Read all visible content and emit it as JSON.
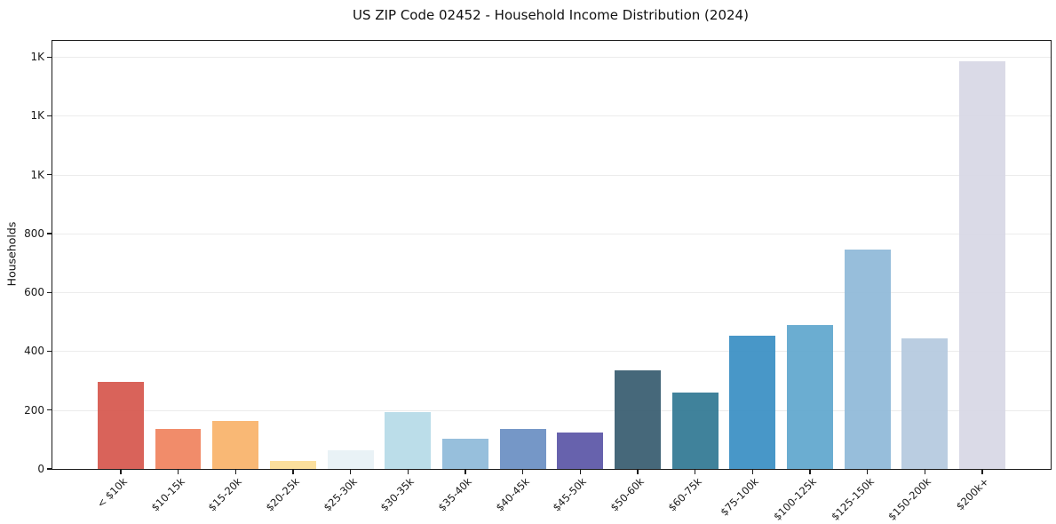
{
  "chart_data": {
    "type": "bar",
    "title": "US ZIP Code 02452 - Household Income Distribution (2024)",
    "xlabel": "",
    "ylabel": "Households",
    "categories": [
      "< $10k",
      "$10-15k",
      "$15-20k",
      "$20-25k",
      "$25-30k",
      "$30-35k",
      "$35-40k",
      "$40-45k",
      "$45-50k",
      "$50-60k",
      "$60-75k",
      "$75-100k",
      "$100-125k",
      "$125-150k",
      "$150-200k",
      "$200k+"
    ],
    "values": [
      297,
      137,
      162,
      28,
      64,
      193,
      102,
      136,
      124,
      335,
      261,
      452,
      489,
      746,
      443,
      1386
    ],
    "bar_colors": [
      "#d6574e",
      "#f0835f",
      "#f9b36a",
      "#fbdd96",
      "#e7f1f5",
      "#b6dae7",
      "#8fbad9",
      "#6b8fc3",
      "#5b56a7",
      "#385d70",
      "#317893",
      "#3a8fc4",
      "#60a7ce",
      "#8fb9d8",
      "#b5c9df",
      "#d7d7e5"
    ],
    "ylim": [
      0,
      1455
    ],
    "yticks": [
      {
        "value": 0,
        "label": "0"
      },
      {
        "value": 200,
        "label": "200"
      },
      {
        "value": 400,
        "label": "400"
      },
      {
        "value": 600,
        "label": "600"
      },
      {
        "value": 800,
        "label": "800"
      },
      {
        "value": 1000,
        "label": "1K"
      },
      {
        "value": 1200,
        "label": "1K"
      },
      {
        "value": 1400,
        "label": "1K"
      }
    ],
    "grid": "horizontal",
    "legend": "none",
    "bar_width_fraction": 0.8,
    "x_label_rotation_deg": 45,
    "axis_color": "#1a1a1a",
    "grid_color": "#ececec",
    "background_color": "#ffffff"
  }
}
